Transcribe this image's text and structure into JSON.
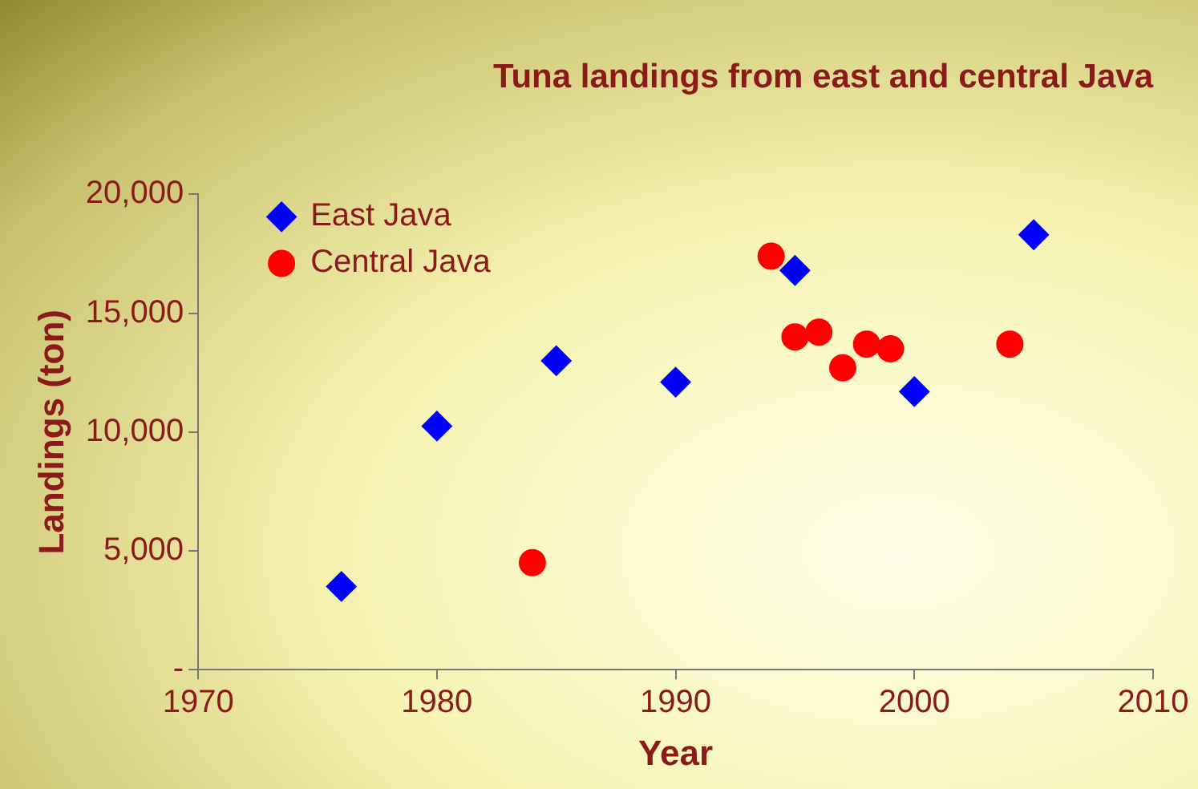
{
  "chart_data": {
    "type": "scatter",
    "title": "Tuna landings from east and central Java",
    "xlabel": "Year",
    "ylabel": "Landings (ton)",
    "xlim": [
      1970,
      2010
    ],
    "xticks": [
      1970,
      1980,
      1990,
      2000,
      2010
    ],
    "ylim": [
      0,
      20000
    ],
    "yticks": [
      {
        "value": 0,
        "label": "-"
      },
      {
        "value": 5000,
        "label": "5,000"
      },
      {
        "value": 10000,
        "label": "10,000"
      },
      {
        "value": 15000,
        "label": "15,000"
      },
      {
        "value": 20000,
        "label": "20,000"
      }
    ],
    "grid": false,
    "legend": "top left",
    "series": [
      {
        "name": "East Java",
        "color": "#0000ff",
        "marker": "diamond",
        "x": [
          1976,
          1980,
          1985,
          1990,
          1995,
          2000,
          2005
        ],
        "values": [
          3500,
          10250,
          13000,
          12100,
          16800,
          11700,
          18300
        ]
      },
      {
        "name": "Central Java",
        "color": "#ff0000",
        "marker": "circle",
        "x": [
          1984,
          1994,
          1995,
          1996,
          1997,
          1998,
          1999,
          2004
        ],
        "values": [
          4500,
          17400,
          14000,
          14200,
          12700,
          13700,
          13500,
          13700
        ]
      }
    ]
  }
}
